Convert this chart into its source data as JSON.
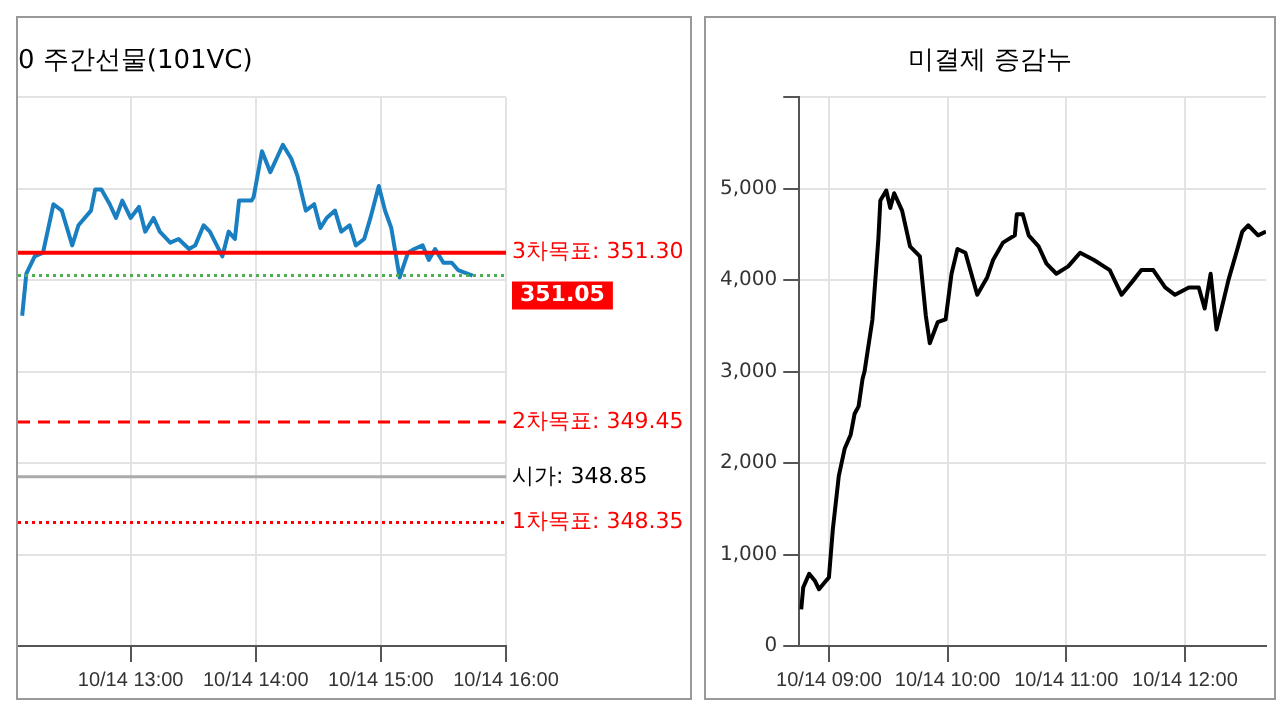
{
  "chart_data": [
    {
      "type": "line",
      "title": "0 주간선물(101VC)",
      "xlim": [
        "--10-14T12:06",
        "--10-14T16:00"
      ],
      "xticks": [
        {
          "value": "--10-14T13:00",
          "label": "10/14 13:00"
        },
        {
          "value": "--10-14T14:00",
          "label": "10/14 14:00"
        },
        {
          "value": "--10-14T15:00",
          "label": "10/14 15:00"
        },
        {
          "value": "--10-14T16:00",
          "label": "10/14 16:00"
        }
      ],
      "ylim": [
        347,
        353
      ],
      "yticks": [
        {
          "value": 347,
          "label": null
        },
        {
          "value": 348,
          "label": null
        },
        {
          "value": 349,
          "label": null
        },
        {
          "value": 350,
          "label": null
        },
        {
          "value": 351,
          "label": null
        },
        {
          "value": 352,
          "label": null
        },
        {
          "value": 353,
          "label": null
        }
      ],
      "tick_labels": "x",
      "grid": true,
      "series": [
        {
          "color": "#1a7fc1",
          "x": [
            "--10-14T12:08",
            "--10-14T12:10",
            "--10-14T12:14",
            "--10-14T12:18",
            "--10-14T12:23",
            "--10-14T12:27",
            "--10-14T12:32",
            "--10-14T12:35",
            "--10-14T12:41",
            "--10-14T12:43",
            "--10-14T12:46",
            "--10-14T12:50",
            "--10-14T12:53",
            "--10-14T12:56",
            "--10-14T13:00",
            "--10-14T13:04",
            "--10-14T13:07",
            "--10-14T13:11",
            "--10-14T13:14",
            "--10-14T13:19",
            "--10-14T13:23",
            "--10-14T13:28",
            "--10-14T13:31",
            "--10-14T13:35",
            "--10-14T13:38",
            "--10-14T13:44",
            "--10-14T13:47",
            "--10-14T13:50",
            "--10-14T13:52",
            "--10-14T13:58",
            "--10-14T13:59",
            "--10-14T14:03",
            "--10-14T14:07",
            "--10-14T14:10",
            "--10-14T14:13",
            "--10-14T14:17",
            "--10-14T14:20",
            "--10-14T14:24",
            "--10-14T14:28",
            "--10-14T14:31",
            "--10-14T14:34",
            "--10-14T14:38",
            "--10-14T14:41",
            "--10-14T14:45",
            "--10-14T14:48",
            "--10-14T14:52",
            "--10-14T14:55",
            "--10-14T14:59",
            "--10-14T15:02",
            "--10-14T15:05",
            "--10-14T15:09",
            "--10-14T15:13",
            "--10-14T15:16",
            "--10-14T15:20",
            "--10-14T15:23",
            "--10-14T15:26",
            "--10-14T15:30",
            "--10-14T15:34",
            "--10-14T15:37",
            "--10-14T15:44"
          ],
          "values": [
            350.61,
            351.07,
            351.26,
            351.3,
            351.83,
            351.76,
            351.38,
            351.6,
            351.76,
            351.99,
            351.99,
            351.83,
            351.68,
            351.87,
            351.68,
            351.8,
            351.53,
            351.68,
            351.53,
            351.41,
            351.45,
            351.34,
            351.38,
            351.6,
            351.53,
            351.26,
            351.53,
            351.45,
            351.87,
            351.87,
            351.91,
            352.41,
            352.18,
            352.33,
            352.48,
            352.33,
            352.14,
            351.76,
            351.83,
            351.57,
            351.68,
            351.76,
            351.53,
            351.6,
            351.38,
            351.45,
            351.68,
            352.03,
            351.76,
            351.57,
            351.03,
            351.3,
            351.34,
            351.38,
            351.22,
            351.34,
            351.19,
            351.19,
            351.11,
            351.05
          ]
        }
      ],
      "ref_lines": [
        {
          "axis": "y",
          "value": 351.3,
          "label": "3차목표: 351.30",
          "color": "#ff0000",
          "line_style": "solid"
        },
        {
          "axis": "y",
          "value": 351.05,
          "color": "#4caf50",
          "line_style": "dotted"
        },
        {
          "axis": "y",
          "value": 349.45,
          "label": "2차목표: 349.45",
          "color": "#ff0000",
          "line_style": "dashed"
        },
        {
          "axis": "y",
          "value": 348.85,
          "label": "시가: 348.85",
          "color": "#aaaaaa",
          "line_style": "solid"
        },
        {
          "axis": "y",
          "value": 348.35,
          "label": "1차목표: 348.35",
          "color": "#ff0000",
          "line_style": "dotted"
        }
      ],
      "annotations": [
        {
          "text": "351.05",
          "x": "--10-14T15:44",
          "y": 351.05
        }
      ]
    },
    {
      "type": "line",
      "title": "미결제 증감누",
      "xlim": [
        "--10-14T08:45",
        "--10-14T12:41"
      ],
      "xticks": [
        {
          "value": "--10-14T09:00",
          "label": "10/14 09:00"
        },
        {
          "value": "--10-14T10:00",
          "label": "10/14 10:00"
        },
        {
          "value": "--10-14T11:00",
          "label": "10/14 11:00"
        },
        {
          "value": "--10-14T12:00",
          "label": "10/14 12:00"
        }
      ],
      "ylim": [
        0,
        6000
      ],
      "yticks": [
        {
          "value": 0,
          "label": "0"
        },
        {
          "value": 1000,
          "label": "1,000"
        },
        {
          "value": 2000,
          "label": "2,000"
        },
        {
          "value": 3000,
          "label": "3,000"
        },
        {
          "value": 4000,
          "label": "4,000"
        },
        {
          "value": 5000,
          "label": "5,000"
        },
        {
          "value": 6000,
          "label": null
        }
      ],
      "grid": true,
      "series": [
        {
          "color": "#000000",
          "x": [
            "--10-14T08:46",
            "--10-14T08:47",
            "--10-14T08:50",
            "--10-14T08:53",
            "--10-14T08:55",
            "--10-14T08:58",
            "--10-14T09:00",
            "--10-14T09:02",
            "--10-14T09:05",
            "--10-14T09:08",
            "--10-14T09:11",
            "--10-14T09:13",
            "--10-14T09:15",
            "--10-14T09:17",
            "--10-14T09:18",
            "--10-14T09:22",
            "--10-14T09:25",
            "--10-14T09:26",
            "--10-14T09:29",
            "--10-14T09:31",
            "--10-14T09:33",
            "--10-14T09:37",
            "--10-14T09:41",
            "--10-14T09:46",
            "--10-14T09:49",
            "--10-14T09:51",
            "--10-14T09:55",
            "--10-14T09:59",
            "--10-14T10:02",
            "--10-14T10:05",
            "--10-14T10:09",
            "--10-14T10:15",
            "--10-14T10:20",
            "--10-14T10:23",
            "--10-14T10:28",
            "--10-14T10:34",
            "--10-14T10:35",
            "--10-14T10:38",
            "--10-14T10:41",
            "--10-14T10:46",
            "--10-14T10:50",
            "--10-14T10:55",
            "--10-14T11:01",
            "--10-14T11:07",
            "--10-14T11:14",
            "--10-14T11:22",
            "--10-14T11:28",
            "--10-14T11:34",
            "--10-14T11:38",
            "--10-14T11:44",
            "--10-14T11:50",
            "--10-14T11:55",
            "--10-14T12:02",
            "--10-14T12:07",
            "--10-14T12:10",
            "--10-14T12:13",
            "--10-14T12:16",
            "--10-14T12:22",
            "--10-14T12:26",
            "--10-14T12:29",
            "--10-14T12:32",
            "--10-14T12:37",
            "--10-14T12:41"
          ],
          "values": [
            400,
            640,
            790,
            710,
            620,
            700,
            750,
            1280,
            1860,
            2160,
            2310,
            2540,
            2620,
            2920,
            3000,
            3570,
            4450,
            4870,
            4980,
            4790,
            4950,
            4760,
            4370,
            4260,
            3610,
            3310,
            3540,
            3570,
            4070,
            4340,
            4300,
            3840,
            4030,
            4220,
            4410,
            4490,
            4720,
            4720,
            4490,
            4370,
            4180,
            4070,
            4150,
            4300,
            4220,
            4110,
            3840,
            4000,
            4110,
            4110,
            3920,
            3840,
            3920,
            3920,
            3690,
            4070,
            3460,
            4000,
            4300,
            4530,
            4600,
            4490,
            4530
          ]
        }
      ]
    }
  ]
}
